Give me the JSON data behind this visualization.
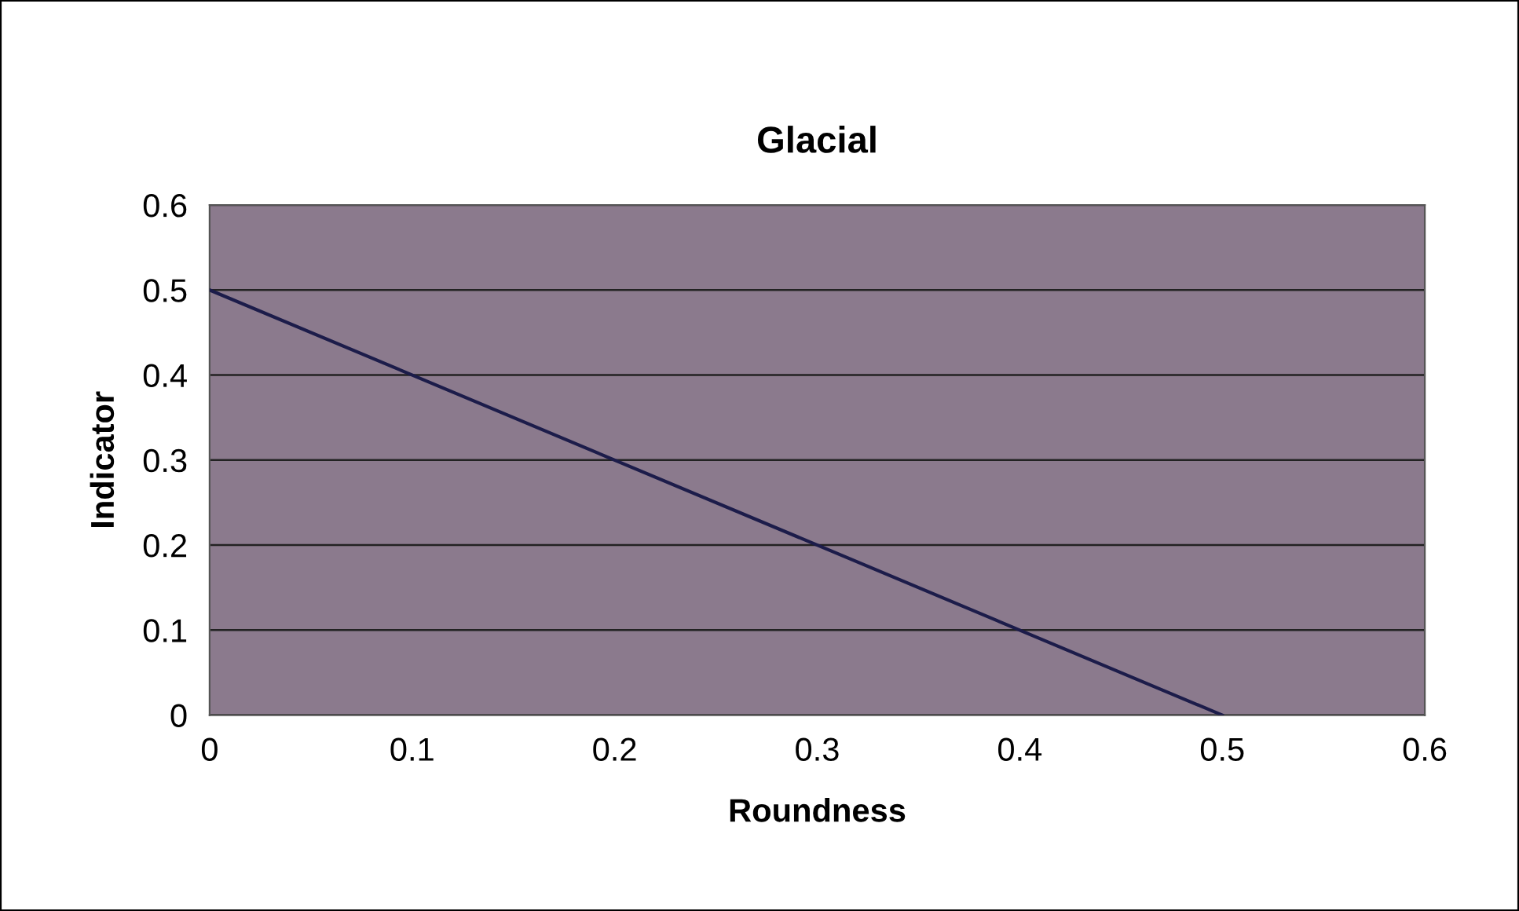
{
  "chart_data": {
    "type": "line",
    "title": "Glacial",
    "xlabel": "Roundness",
    "ylabel": "Indicator",
    "x": [
      0,
      0.5
    ],
    "series": [
      {
        "color": "#1c1c4a",
        "values": [
          0.5,
          0
        ]
      }
    ],
    "xlim": [
      0,
      0.6
    ],
    "xticks": [
      0,
      0.1,
      0.2,
      0.3,
      0.4,
      0.5,
      0.6
    ],
    "ylim": [
      0,
      0.6
    ],
    "yticks": [
      0,
      0.1,
      0.2,
      0.3,
      0.4,
      0.5,
      0.6
    ],
    "grid": "y",
    "marker": "none",
    "line_style": "solid"
  }
}
